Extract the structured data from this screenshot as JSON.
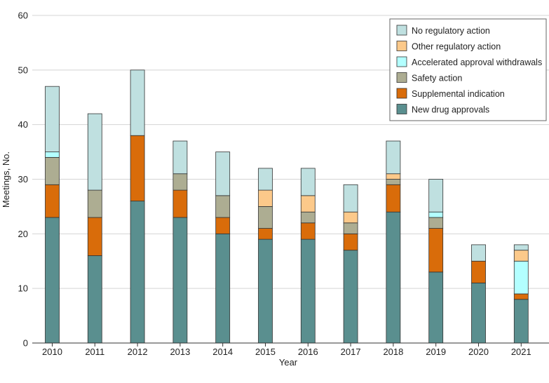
{
  "chart_data": {
    "type": "bar",
    "stacked": true,
    "title": "",
    "xlabel": "Year",
    "ylabel": "Meetings, No.",
    "ylim": [
      0,
      60
    ],
    "yticks": [
      0,
      10,
      20,
      30,
      40,
      50,
      60
    ],
    "grid": true,
    "legend_position": "top-right",
    "categories": [
      "2010",
      "2011",
      "2012",
      "2013",
      "2014",
      "2015",
      "2016",
      "2017",
      "2018",
      "2019",
      "2020",
      "2021"
    ],
    "series": [
      {
        "name": "New drug approvals",
        "color": "#5a8f8f",
        "values": [
          23,
          16,
          26,
          23,
          20,
          19,
          19,
          17,
          24,
          13,
          11,
          8
        ]
      },
      {
        "name": "Supplemental indication",
        "color": "#d96c0a",
        "values": [
          6,
          7,
          12,
          5,
          3,
          2,
          3,
          3,
          5,
          8,
          4,
          1
        ]
      },
      {
        "name": "Safety action",
        "color": "#adad92",
        "values": [
          5,
          5,
          0,
          3,
          4,
          4,
          2,
          2,
          1,
          2,
          0,
          0
        ]
      },
      {
        "name": "Accelerated approval withdrawals",
        "color": "#b3ffff",
        "values": [
          1,
          0,
          0,
          0,
          0,
          0,
          0,
          0,
          0,
          1,
          0,
          6
        ]
      },
      {
        "name": "Other regulatory action",
        "color": "#fcc98a",
        "values": [
          0,
          0,
          0,
          0,
          0,
          3,
          3,
          2,
          1,
          0,
          0,
          2
        ]
      },
      {
        "name": "No regulatory action",
        "color": "#bfe0e0",
        "values": [
          12,
          14,
          12,
          6,
          8,
          4,
          5,
          5,
          6,
          6,
          3,
          1
        ]
      }
    ],
    "legend_order": [
      "No regulatory action",
      "Other regulatory action",
      "Accelerated approval withdrawals",
      "Safety action",
      "Supplemental indication",
      "New drug approvals"
    ]
  },
  "colors": {
    "grid": "#d4d4d4",
    "axis": "#333333",
    "bar_stroke": "#333333"
  }
}
